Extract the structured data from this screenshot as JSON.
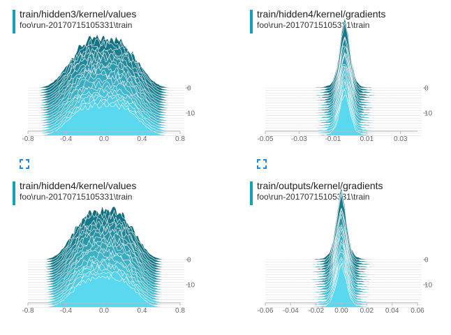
{
  "cards": [
    {
      "id": "c1",
      "title": "train/hidden3/kernel/values",
      "run": "foo\\run-20170715105331\\train",
      "x_ticks": [
        "-0.8",
        "-0.4",
        "0.0",
        "0.4",
        "0.8"
      ],
      "x_tick_values": [
        -0.8,
        -0.4,
        0.0,
        0.4,
        0.8
      ],
      "x_range": [
        -0.8,
        0.8
      ],
      "y_ticks": [
        "0",
        "10"
      ],
      "y_tick_values": [
        0,
        10
      ],
      "shape": "wide",
      "center": 0.0,
      "spread": 0.33
    },
    {
      "id": "c2",
      "title": "train/hidden4/kernel/gradients",
      "run": "foo\\run-20170715105331\\train",
      "x_ticks": [
        "-0.05",
        "-0.03",
        "-0.01",
        "0.01",
        "0.03"
      ],
      "x_tick_values": [
        -0.05,
        -0.03,
        -0.01,
        0.01,
        0.03
      ],
      "x_range": [
        -0.05,
        0.04
      ],
      "y_ticks": [
        "0",
        "10"
      ],
      "y_tick_values": [
        0,
        10
      ],
      "shape": "spike",
      "center": -0.003,
      "spread": 0.003
    },
    {
      "id": "c3",
      "title": "train/hidden4/kernel/values",
      "run": "foo\\run-20170715105331\\train",
      "x_ticks": [
        "-0.8",
        "-0.4",
        "0.0",
        "0.4",
        "0.8"
      ],
      "x_tick_values": [
        -0.8,
        -0.4,
        0.0,
        0.4,
        0.8
      ],
      "x_range": [
        -0.8,
        0.8
      ],
      "y_ticks": [
        "0",
        "10"
      ],
      "y_tick_values": [
        0,
        10
      ],
      "shape": "wide",
      "center": 0.0,
      "spread": 0.3
    },
    {
      "id": "c4",
      "title": "train/outputs/kernel/gradients",
      "run": "foo\\run-20170715105331\\train",
      "x_ticks": [
        "-0.06",
        "-0.04",
        "-0.02",
        "0.00",
        "0.02",
        "0.04",
        "0.06"
      ],
      "x_tick_values": [
        -0.06,
        -0.04,
        -0.02,
        0.0,
        0.02,
        0.04,
        0.06
      ],
      "x_range": [
        -0.06,
        0.06
      ],
      "y_ticks": [
        "0",
        "10"
      ],
      "y_tick_values": [
        0,
        10
      ],
      "shape": "spike",
      "center": 0.0,
      "spread": 0.004
    }
  ],
  "steps": 20,
  "colors": {
    "accent_bar": "#12a2b6",
    "front_fill": "#5ad8f0",
    "back_fill": "#0f6e7d",
    "expand_icon": "#1e88e5"
  },
  "icons": {
    "expand": "fullscreen-expand-icon"
  }
}
